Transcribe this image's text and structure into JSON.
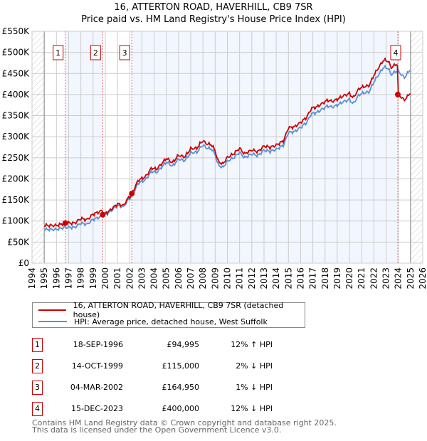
{
  "header": {
    "title": "16, ATTERTON ROAD, HAVERHILL, CB9 7SR",
    "subtitle": "Price paid vs. HM Land Registry's House Price Index (HPI)"
  },
  "chart_data": {
    "type": "line",
    "title": "16, ATTERTON ROAD, HAVERHILL, CB9 7SR",
    "subtitle": "Price paid vs. HM Land Registry's House Price Index (HPI)",
    "xlim": [
      1994,
      2026
    ],
    "ylim": [
      0,
      550000
    ],
    "x_ticks": [
      "1994",
      "1995",
      "1996",
      "1997",
      "1998",
      "1999",
      "2000",
      "2001",
      "2002",
      "2003",
      "2004",
      "2005",
      "2006",
      "2007",
      "2008",
      "2009",
      "2010",
      "2011",
      "2012",
      "2013",
      "2014",
      "2015",
      "2016",
      "2017",
      "2018",
      "2019",
      "2020",
      "2021",
      "2022",
      "2023",
      "2024",
      "2025",
      "2026"
    ],
    "y_ticks": [
      "£0",
      "£50K",
      "£100K",
      "£150K",
      "£200K",
      "£250K",
      "£300K",
      "£350K",
      "£400K",
      "£450K",
      "£500K",
      "£550K"
    ],
    "grid": true,
    "colors": {
      "property": "#cc0000",
      "hpi": "#5b8fd4"
    },
    "hpi_series": {
      "name": "HPI: Average price, detached house, West Suffolk",
      "x": [
        1995.0,
        1996,
        1996.7,
        1997.5,
        1998,
        1998.5,
        1999,
        1999.8,
        2000.3,
        2001,
        2001.5,
        2001.8,
        2002.2,
        2002.7,
        2003.3,
        2003.8,
        2004.2,
        2004.6,
        2005,
        2005.5,
        2006,
        2006.5,
        2007,
        2007.5,
        2007.8,
        2008,
        2008.3,
        2008.7,
        2009.0,
        2009.2,
        2009.6,
        2010,
        2010.5,
        2011,
        2011.4,
        2012,
        2012.5,
        2013,
        2013.5,
        2014,
        2014.6,
        2015,
        2015.5,
        2016,
        2016.5,
        2016.9,
        2017.3,
        2017.8,
        2018.2,
        2018.6,
        2019,
        2019.5,
        2020,
        2020.3,
        2020.8,
        2021.2,
        2021.6,
        2022,
        2022.4,
        2022.8,
        2023.2,
        2023.4,
        2023.8,
        2024,
        2024.5,
        2025.0
      ],
      "y": [
        80000,
        80000,
        85000,
        85000,
        95000,
        92000,
        104000,
        112000,
        120000,
        137000,
        133000,
        148000,
        160000,
        190000,
        198000,
        218000,
        215000,
        227000,
        240000,
        230000,
        247000,
        243000,
        262000,
        263000,
        275000,
        280000,
        273000,
        271000,
        258000,
        235000,
        226000,
        242000,
        250000,
        263000,
        250000,
        259000,
        255000,
        268000,
        265000,
        270000,
        280000,
        310000,
        312000,
        322000,
        334000,
        355000,
        357000,
        366000,
        373000,
        370000,
        375000,
        383000,
        388000,
        378000,
        400000,
        404000,
        406000,
        430000,
        448000,
        465000,
        462000,
        447000,
        455000,
        455000,
        440000,
        460000
      ]
    },
    "property_series": {
      "name": "16, ATTERTON ROAD, HAVERHILL, CB9 7SR (detached house)"
    },
    "sales": [
      {
        "label": "1",
        "x": 1996.72,
        "price": 94995
      },
      {
        "label": "2",
        "x": 1999.79,
        "price": 115000
      },
      {
        "label": "3",
        "x": 2002.17,
        "price": 164950
      },
      {
        "label": "4",
        "x": 2023.96,
        "price": 400000
      }
    ]
  },
  "legend": {
    "property": "16, ATTERTON ROAD, HAVERHILL, CB9 7SR (detached house)",
    "hpi": "HPI: Average price, detached house, West Suffolk"
  },
  "transactions": [
    {
      "num": "1",
      "date": "18-SEP-1996",
      "price": "£94,995",
      "hpi": "12% ↑ HPI"
    },
    {
      "num": "2",
      "date": "14-OCT-1999",
      "price": "£115,000",
      "hpi": "2% ↓ HPI"
    },
    {
      "num": "3",
      "date": "04-MAR-2002",
      "price": "£164,950",
      "hpi": "1% ↓ HPI"
    },
    {
      "num": "4",
      "date": "15-DEC-2023",
      "price": "£400,000",
      "hpi": "12% ↓ HPI"
    }
  ],
  "footer": {
    "line1": "Contains HM Land Registry data © Crown copyright and database right 2025.",
    "line2": "This data is licensed under the Open Government Licence v3.0."
  }
}
